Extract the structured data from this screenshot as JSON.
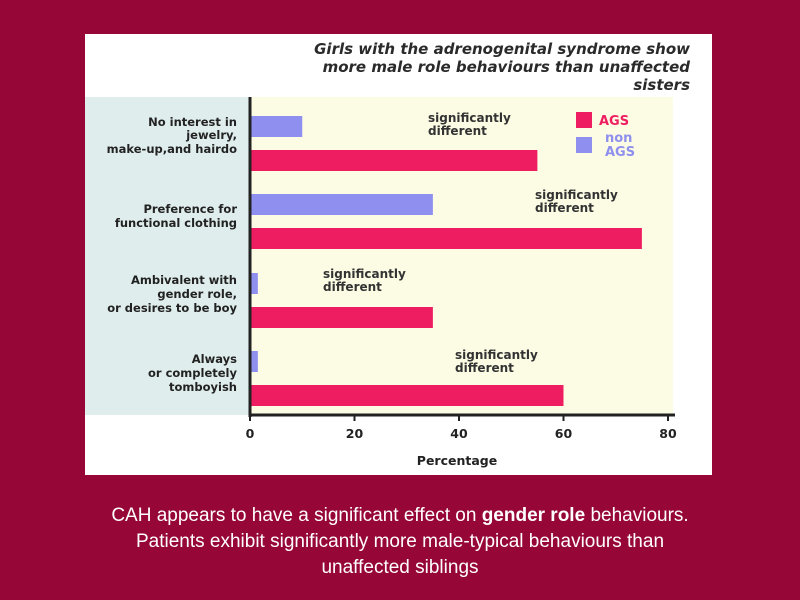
{
  "chart_data": {
    "type": "bar",
    "orientation": "horizontal",
    "title_lines": [
      "Girls with the adrenogenital syndrome show",
      "more male role behaviours than unaffected",
      "sisters"
    ],
    "categories": [
      [
        "No interest in",
        "jewelry,",
        "make-up,and hairdo"
      ],
      [
        "Preference for",
        "functional clothing"
      ],
      [
        "Ambivalent with",
        "gender role,",
        "or desires to be boy"
      ],
      [
        "Always",
        "or completely",
        "tomboyish"
      ]
    ],
    "series": [
      {
        "name": "AGS",
        "color": "#ee1c60",
        "values": [
          55,
          75,
          35,
          60
        ]
      },
      {
        "name": "non AGS",
        "legend_lines": [
          "non",
          "AGS"
        ],
        "color": "#8f8ff0",
        "values": [
          10,
          35,
          1.5,
          1.5
        ]
      }
    ],
    "annotations": [
      [
        "significantly",
        "different"
      ],
      [
        "significantly",
        "different"
      ],
      [
        "significantly",
        "different"
      ],
      [
        "significantly",
        "different"
      ]
    ],
    "xlabel": "Percentage",
    "xlim": [
      0,
      80
    ],
    "xticks": [
      "0",
      "20",
      "40",
      "60",
      "80"
    ],
    "legend_position": "top-right",
    "plot_background": "#fcfbe3",
    "label_background": "#e0eded"
  },
  "caption": {
    "line1_pre": "CAH appears to have a significant effect on ",
    "line1_bold": "gender role",
    "line1_post": " behaviours.",
    "line2": "Patients exhibit significantly more male-typical behaviours than",
    "line3": "unaffected siblings"
  }
}
